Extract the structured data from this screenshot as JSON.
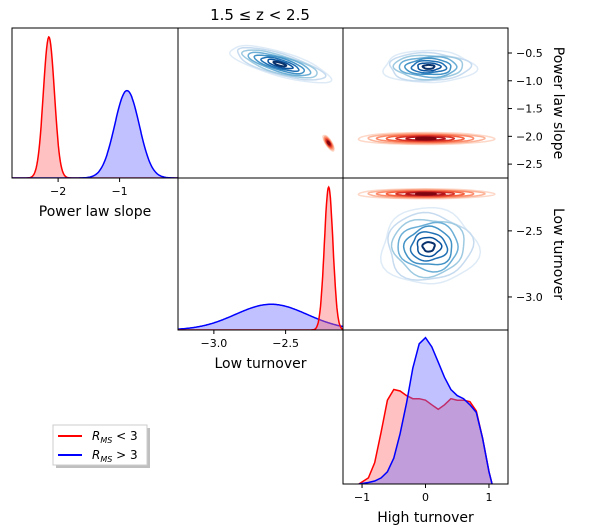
{
  "chart_data": {
    "type": "area",
    "title": "1.5 ≤ z < 2.5",
    "variables": [
      "Power law slope",
      "Low turnover",
      "High turnover"
    ],
    "axes": {
      "power_law_slope": {
        "label": "Power law slope",
        "lim": [
          -2.75,
          -0.05
        ],
        "ticks": [
          -2,
          -1
        ],
        "tick_labels": [
          "−2",
          "−1"
        ],
        "right_ticks": [
          -0.5,
          -1.0,
          -1.5,
          -2.0,
          -2.5
        ],
        "right_tick_labels": [
          "−0.5",
          "−1.0",
          "−1.5",
          "−2.0",
          "−2.5"
        ]
      },
      "low_turnover": {
        "label": "Low turnover",
        "lim": [
          -3.25,
          -2.1
        ],
        "ticks": [
          -3.0,
          -2.5
        ],
        "tick_labels": [
          "−3.0",
          "−2.5"
        ],
        "right_ticks": [
          -2.5,
          -3.0
        ],
        "right_tick_labels": [
          "−2.5",
          "−3.0"
        ]
      },
      "high_turnover": {
        "label": "High turnover",
        "lim": [
          -1.3,
          1.3
        ],
        "ticks": [
          -1,
          0,
          1
        ],
        "tick_labels": [
          "−1",
          "0",
          "1"
        ]
      }
    },
    "series": [
      {
        "name": "R_MS < 3",
        "label_main": "R",
        "label_sub": "MS",
        "label_rest": " < 3",
        "color": "#ff0000",
        "fill": "#ff6b6b",
        "contour_palette": [
          "#fdd8c8",
          "#fcb398",
          "#fb8a6a",
          "#f4613f",
          "#d93327",
          "#b5141b",
          "#7f0610"
        ],
        "power_law_slope": {
          "mean": -2.15,
          "sd": 0.09
        },
        "low_turnover": {
          "mean": -2.2,
          "sd": 0.03
        },
        "high_turnover": {
          "x": [
            -1.05,
            -0.9,
            -0.8,
            -0.7,
            -0.6,
            -0.5,
            -0.4,
            -0.3,
            -0.2,
            -0.1,
            0.0,
            0.1,
            0.2,
            0.3,
            0.4,
            0.5,
            0.6,
            0.7,
            0.8,
            0.9,
            1.0,
            1.05
          ],
          "density": [
            0.0,
            0.04,
            0.14,
            0.34,
            0.55,
            0.62,
            0.61,
            0.58,
            0.56,
            0.56,
            0.55,
            0.52,
            0.49,
            0.52,
            0.56,
            0.55,
            0.55,
            0.54,
            0.48,
            0.3,
            0.08,
            0.0
          ]
        }
      },
      {
        "name": "R_MS > 3",
        "label_main": "R",
        "label_sub": "MS",
        "label_rest": " > 3",
        "color": "#0000ff",
        "fill": "#6b6bff",
        "contour_palette": [
          "#deebf7",
          "#c6dbef",
          "#9ecae1",
          "#6baed6",
          "#4292c6",
          "#2171b5",
          "#08519c",
          "#08306b"
        ],
        "power_law_slope": {
          "mean": -0.88,
          "sd": 0.2
        },
        "low_turnover": {
          "mean": -2.6,
          "sd": 0.25
        },
        "high_turnover": {
          "x": [
            -1.05,
            -0.9,
            -0.8,
            -0.7,
            -0.6,
            -0.5,
            -0.4,
            -0.3,
            -0.2,
            -0.1,
            0.0,
            0.1,
            0.2,
            0.3,
            0.4,
            0.5,
            0.6,
            0.7,
            0.8,
            0.9,
            1.0,
            1.05
          ],
          "density": [
            0.0,
            0.01,
            0.02,
            0.04,
            0.08,
            0.17,
            0.33,
            0.53,
            0.76,
            0.92,
            0.96,
            0.9,
            0.8,
            0.7,
            0.62,
            0.58,
            0.56,
            0.52,
            0.47,
            0.3,
            0.08,
            0.0
          ]
        }
      }
    ],
    "legend_position": "lower-left",
    "grid": false
  }
}
